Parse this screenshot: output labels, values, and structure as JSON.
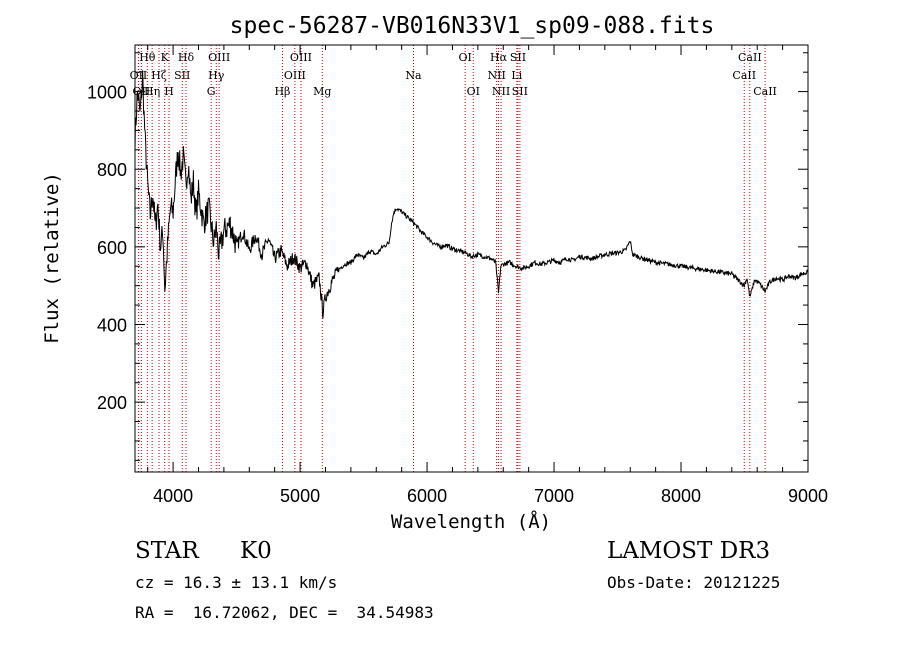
{
  "chart_data": {
    "type": "line",
    "title": "spec-56287-VB016N33V1_sp09-088.fits",
    "xlabel": "Wavelength (Å)",
    "ylabel": "Flux (relative)",
    "xlim": [
      3700,
      9000
    ],
    "ylim": [
      20,
      1120
    ],
    "x_ticks": [
      4000,
      5000,
      6000,
      7000,
      8000,
      9000
    ],
    "x_tick_labels": [
      "4000",
      "5000",
      "6000",
      "7000",
      "8000",
      "9000"
    ],
    "y_ticks": [
      200,
      400,
      600,
      800,
      1000
    ],
    "y_tick_labels": [
      "200",
      "400",
      "600",
      "800",
      "1000"
    ],
    "grid": false,
    "series": [
      {
        "name": "flux",
        "points": [
          [
            3700,
            880
          ],
          [
            3720,
            1000
          ],
          [
            3740,
            940
          ],
          [
            3760,
            1040
          ],
          [
            3780,
            870
          ],
          [
            3800,
            760
          ],
          [
            3820,
            680
          ],
          [
            3840,
            740
          ],
          [
            3860,
            650
          ],
          [
            3880,
            710
          ],
          [
            3900,
            600
          ],
          [
            3920,
            640
          ],
          [
            3935,
            490
          ],
          [
            3960,
            620
          ],
          [
            3980,
            700
          ],
          [
            4000,
            690
          ],
          [
            4020,
            780
          ],
          [
            4040,
            850
          ],
          [
            4060,
            790
          ],
          [
            4080,
            830
          ],
          [
            4100,
            760
          ],
          [
            4120,
            820
          ],
          [
            4140,
            720
          ],
          [
            4160,
            770
          ],
          [
            4180,
            680
          ],
          [
            4200,
            740
          ],
          [
            4240,
            660
          ],
          [
            4280,
            700
          ],
          [
            4320,
            610
          ],
          [
            4340,
            650
          ],
          [
            4360,
            580
          ],
          [
            4400,
            640
          ],
          [
            4450,
            660
          ],
          [
            4500,
            600
          ],
          [
            4550,
            640
          ],
          [
            4600,
            590
          ],
          [
            4650,
            630
          ],
          [
            4700,
            580
          ],
          [
            4750,
            620
          ],
          [
            4800,
            570
          ],
          [
            4850,
            590
          ],
          [
            4900,
            550
          ],
          [
            4950,
            575
          ],
          [
            5000,
            545
          ],
          [
            5050,
            560
          ],
          [
            5100,
            500
          ],
          [
            5150,
            520
          ],
          [
            5180,
            430
          ],
          [
            5200,
            470
          ],
          [
            5250,
            510
          ],
          [
            5300,
            540
          ],
          [
            5350,
            555
          ],
          [
            5400,
            560
          ],
          [
            5450,
            580
          ],
          [
            5500,
            570
          ],
          [
            5550,
            590
          ],
          [
            5600,
            580
          ],
          [
            5650,
            600
          ],
          [
            5700,
            610
          ],
          [
            5720,
            660
          ],
          [
            5740,
            690
          ],
          [
            5760,
            700
          ],
          [
            5800,
            690
          ],
          [
            5850,
            675
          ],
          [
            5900,
            660
          ],
          [
            5950,
            640
          ],
          [
            6000,
            625
          ],
          [
            6050,
            610
          ],
          [
            6100,
            600
          ],
          [
            6150,
            605
          ],
          [
            6200,
            595
          ],
          [
            6250,
            590
          ],
          [
            6300,
            585
          ],
          [
            6350,
            575
          ],
          [
            6400,
            580
          ],
          [
            6450,
            575
          ],
          [
            6500,
            570
          ],
          [
            6540,
            560
          ],
          [
            6563,
            480
          ],
          [
            6580,
            550
          ],
          [
            6600,
            555
          ],
          [
            6650,
            560
          ],
          [
            6700,
            550
          ],
          [
            6750,
            545
          ],
          [
            6800,
            550
          ],
          [
            6850,
            560
          ],
          [
            6900,
            555
          ],
          [
            6950,
            560
          ],
          [
            7000,
            565
          ],
          [
            7050,
            560
          ],
          [
            7100,
            570
          ],
          [
            7150,
            565
          ],
          [
            7200,
            575
          ],
          [
            7300,
            570
          ],
          [
            7400,
            580
          ],
          [
            7500,
            585
          ],
          [
            7560,
            590
          ],
          [
            7600,
            615
          ],
          [
            7620,
            580
          ],
          [
            7700,
            570
          ],
          [
            7800,
            560
          ],
          [
            7900,
            555
          ],
          [
            8000,
            550
          ],
          [
            8100,
            545
          ],
          [
            8200,
            540
          ],
          [
            8300,
            535
          ],
          [
            8400,
            530
          ],
          [
            8498,
            500
          ],
          [
            8520,
            520
          ],
          [
            8542,
            470
          ],
          [
            8580,
            515
          ],
          [
            8620,
            505
          ],
          [
            8662,
            485
          ],
          [
            8700,
            510
          ],
          [
            8750,
            520
          ],
          [
            8800,
            515
          ],
          [
            8850,
            525
          ],
          [
            8900,
            520
          ],
          [
            8950,
            530
          ],
          [
            9000,
            535
          ]
        ]
      }
    ],
    "line_markers": [
      {
        "wave": 3727,
        "label": "OII",
        "row": 2
      },
      {
        "wave": 3750,
        "label": "OII",
        "row": 3
      },
      {
        "wave": 3797,
        "label": "Hθ",
        "row": 1
      },
      {
        "wave": 3835,
        "label": "Hη",
        "row": 3
      },
      {
        "wave": 3889,
        "label": "Hζ",
        "row": 2
      },
      {
        "wave": 3934,
        "label": "K",
        "row": 1
      },
      {
        "wave": 3968,
        "label": "H",
        "row": 3
      },
      {
        "wave": 4072,
        "label": "SII",
        "row": 2
      },
      {
        "wave": 4102,
        "label": "Hδ",
        "row": 1
      },
      {
        "wave": 4300,
        "label": "G",
        "row": 3
      },
      {
        "wave": 4340,
        "label": "Hγ",
        "row": 2
      },
      {
        "wave": 4363,
        "label": "OIII",
        "row": 1
      },
      {
        "wave": 4861,
        "label": "Hβ",
        "row": 3
      },
      {
        "wave": 4959,
        "label": "OIII",
        "row": 2
      },
      {
        "wave": 5007,
        "label": "OIII",
        "row": 1
      },
      {
        "wave": 5175,
        "label": "Mg",
        "row": 3
      },
      {
        "wave": 5893,
        "label": "Na",
        "row": 2
      },
      {
        "wave": 6300,
        "label": "OI",
        "row": 1
      },
      {
        "wave": 6364,
        "label": "OI",
        "row": 3
      },
      {
        "wave": 6548,
        "label": "NII",
        "row": 2
      },
      {
        "wave": 6563,
        "label": "Hα",
        "row": 1
      },
      {
        "wave": 6583,
        "label": "NII",
        "row": 3
      },
      {
        "wave": 6707,
        "label": "Li",
        "row": 2
      },
      {
        "wave": 6716,
        "label": "SII",
        "row": 1
      },
      {
        "wave": 6731,
        "label": "SII",
        "row": 3
      },
      {
        "wave": 8498,
        "label": "CaII",
        "row": 2
      },
      {
        "wave": 8542,
        "label": "CaII",
        "row": 1
      },
      {
        "wave": 8662,
        "label": "CaII",
        "row": 3
      }
    ]
  },
  "footer": {
    "class_label": "STAR",
    "subclass_label": "K0",
    "survey": "LAMOST DR3",
    "cz": "cz = 16.3 ± 13.1 km/s",
    "obs_date": "Obs-Date: 20121225",
    "coords": "RA =  16.72062, DEC =  34.54983"
  },
  "colors": {
    "spectrum": "#000000",
    "marker_line": "#cc0000",
    "axes": "#000000"
  }
}
